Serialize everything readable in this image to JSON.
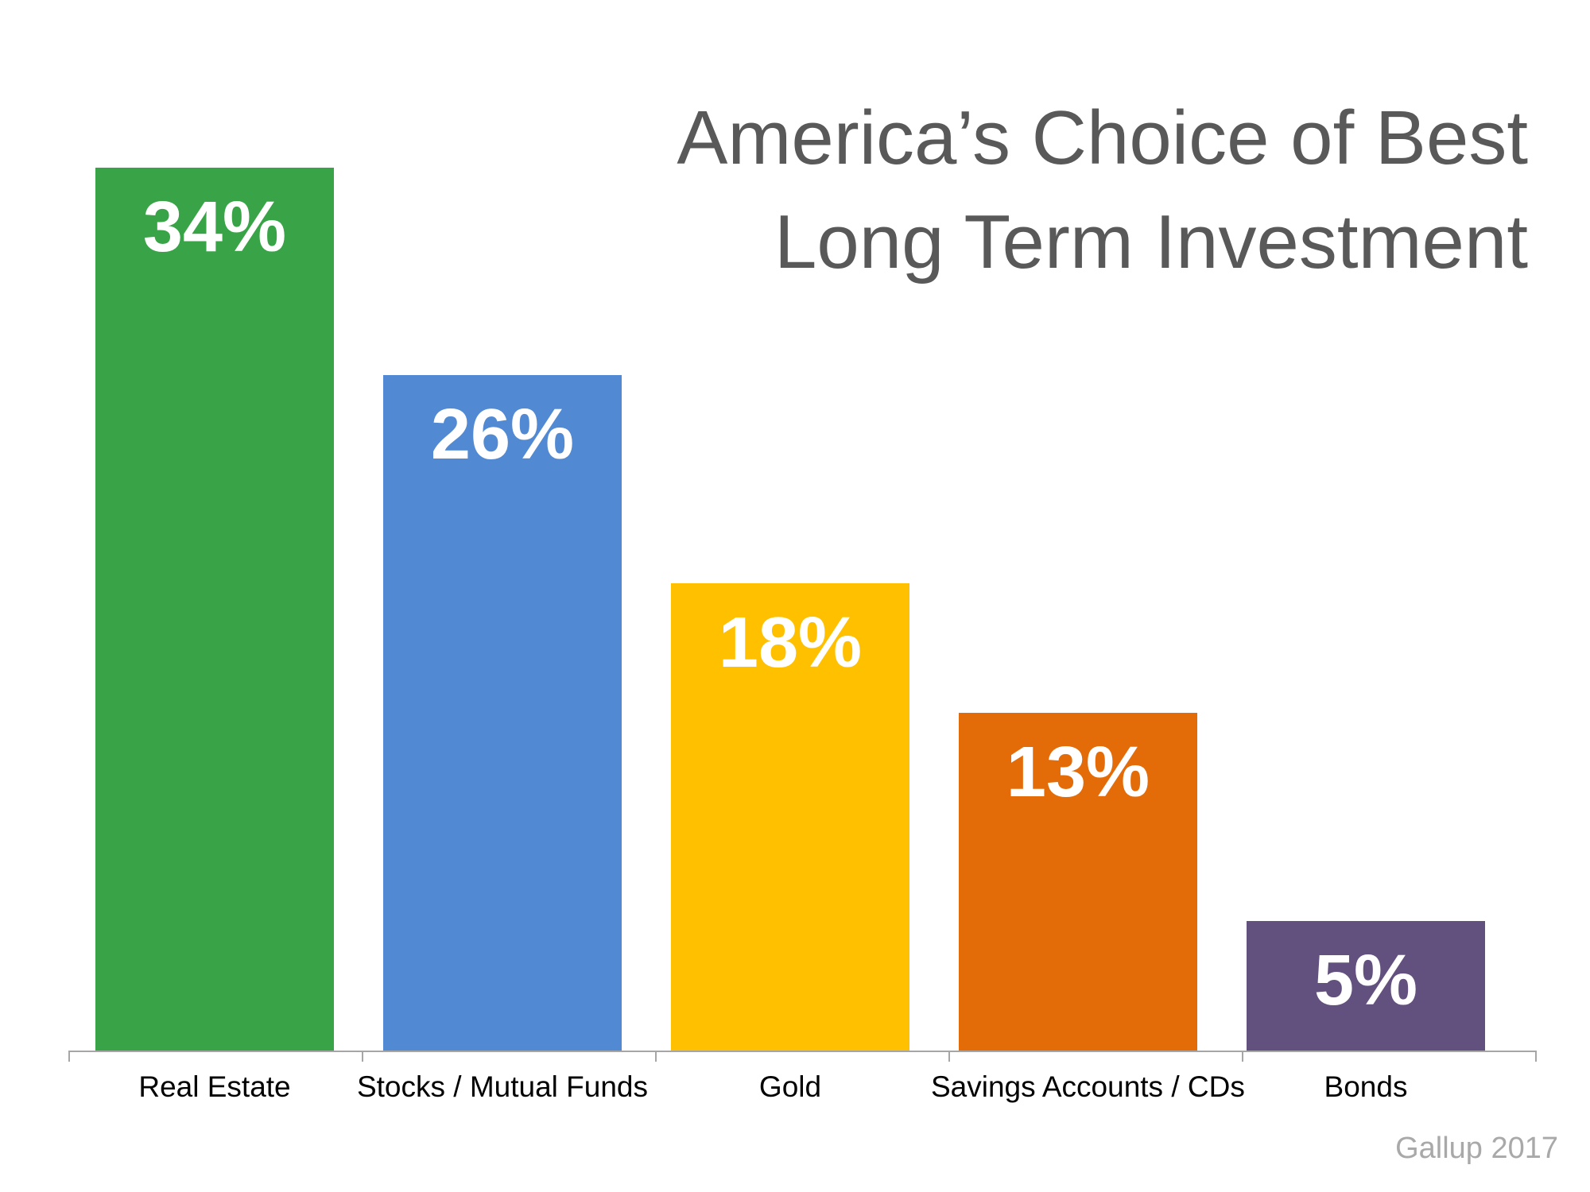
{
  "title": {
    "line1": "America’s Choice of Best",
    "line2": "Long Term Investment"
  },
  "source": {
    "text": "Gallup 2017"
  },
  "chart_data": {
    "type": "bar",
    "title": "America’s Choice of Best Long Term Investment",
    "categories": [
      "Real Estate",
      "Stocks / Mutual Funds",
      "Gold",
      "Savings Accounts / CDs",
      "Bonds"
    ],
    "values": [
      34,
      26,
      18,
      13,
      5
    ],
    "data_labels": [
      "34%",
      "26%",
      "18%",
      "13%",
      "5%"
    ],
    "bar_colors": [
      "#39a347",
      "#5289d3",
      "#ffc000",
      "#e36c09",
      "#62507e"
    ],
    "title_color": "#595959",
    "label_color": "#ffffff",
    "axis_color": "#a6a6a6",
    "category_label_color": "#000000",
    "source_color": "#a9a9a9",
    "xlabel": "",
    "ylabel": "",
    "ylim": [
      0,
      40
    ],
    "grid": false,
    "legend": false,
    "value_labels_position": "inside-top",
    "source": "Gallup 2017"
  }
}
